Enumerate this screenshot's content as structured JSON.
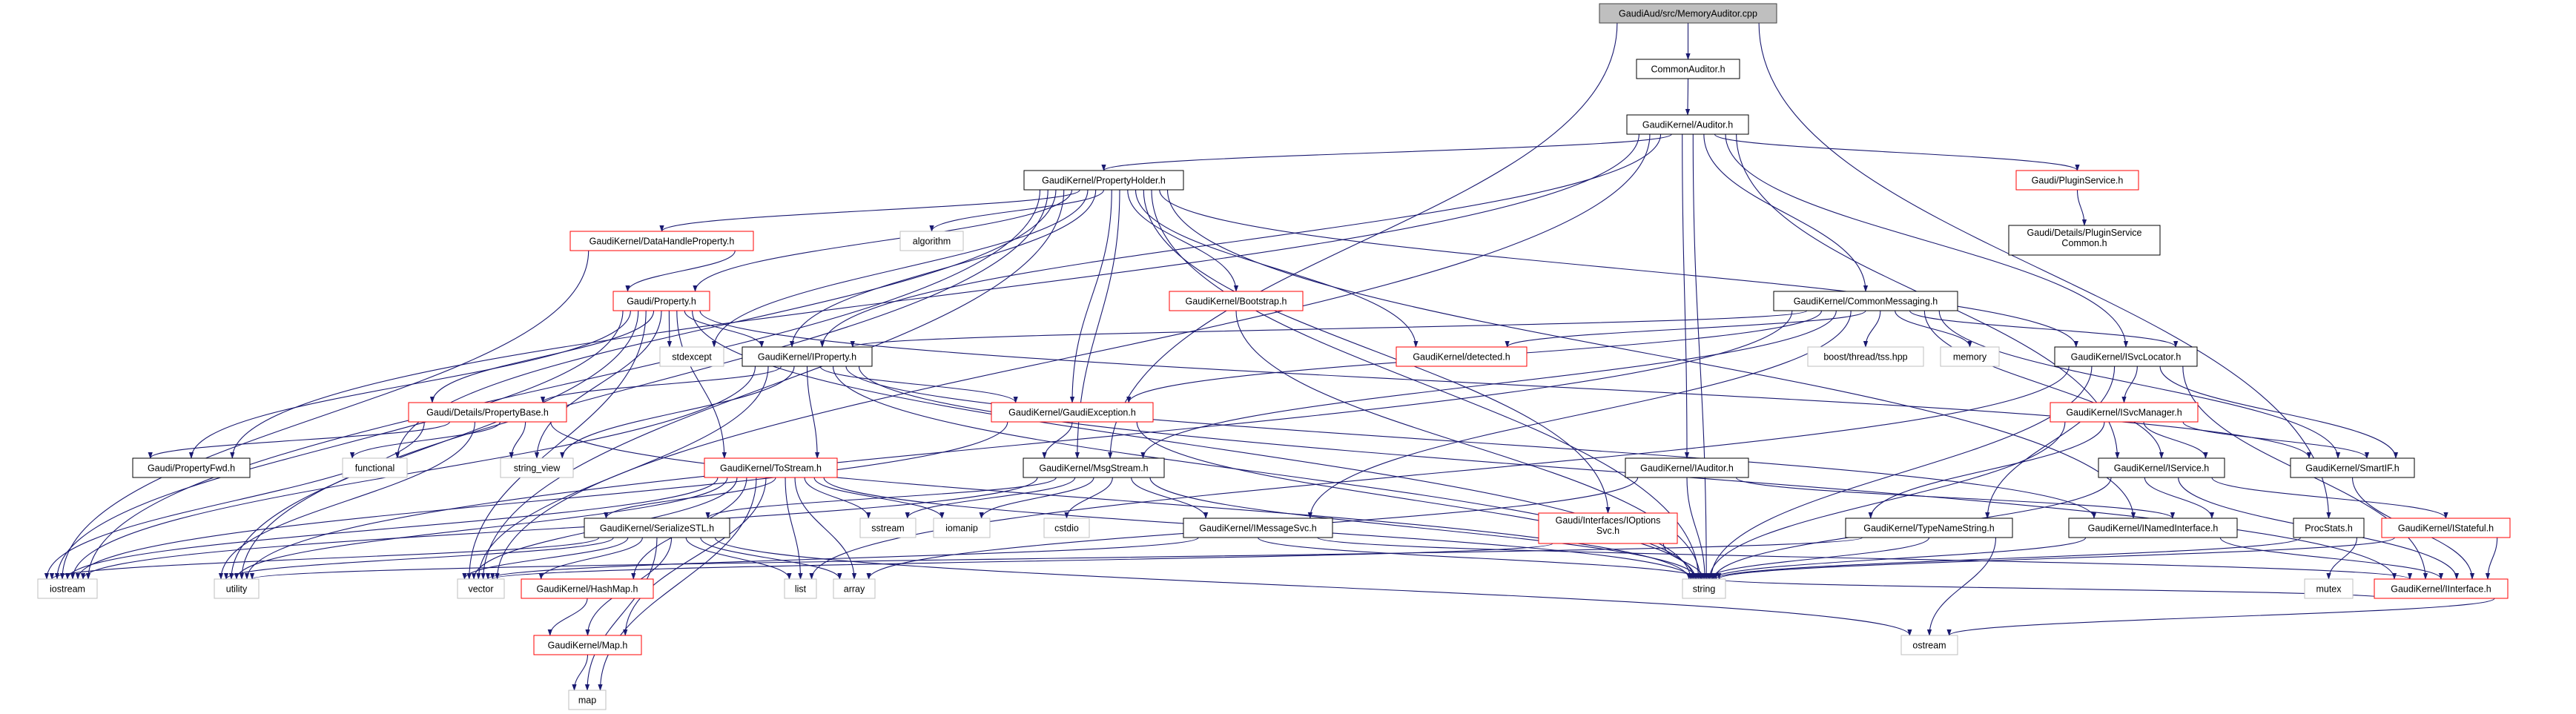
{
  "colors": {
    "edge": "#191970",
    "root_fill": "#bfbfbf",
    "root_border": "#404040",
    "documented_border": "#000000",
    "truncated_border": "#ff0000",
    "system_border": "#bfbfbf",
    "node_fill": "#ffffff"
  },
  "nodes": [
    {
      "id": "root",
      "label": [
        "GaudiAud/src/MemoryAuditor.cpp"
      ],
      "kind": "root"
    },
    {
      "id": "commonauditor",
      "label": [
        "CommonAuditor.h"
      ],
      "kind": "doc"
    },
    {
      "id": "auditor",
      "label": [
        "GaudiKernel/Auditor.h"
      ],
      "kind": "doc"
    },
    {
      "id": "propertyholder",
      "label": [
        "GaudiKernel/PropertyHolder.h"
      ],
      "kind": "doc"
    },
    {
      "id": "pluginservice",
      "label": [
        "Gaudi/PluginService.h"
      ],
      "kind": "red"
    },
    {
      "id": "pscommon",
      "label": [
        "Gaudi/Details/PluginService",
        "Common.h"
      ],
      "kind": "doc"
    },
    {
      "id": "datahandle",
      "label": [
        "GaudiKernel/DataHandleProperty.h"
      ],
      "kind": "red"
    },
    {
      "id": "algorithm",
      "label": [
        "algorithm"
      ],
      "kind": "sys"
    },
    {
      "id": "property",
      "label": [
        "Gaudi/Property.h"
      ],
      "kind": "red"
    },
    {
      "id": "bootstrap",
      "label": [
        "GaudiKernel/Bootstrap.h"
      ],
      "kind": "red"
    },
    {
      "id": "commonmessaging",
      "label": [
        "GaudiKernel/CommonMessaging.h"
      ],
      "kind": "doc"
    },
    {
      "id": "stdexcept",
      "label": [
        "stdexcept"
      ],
      "kind": "sys"
    },
    {
      "id": "iproperty",
      "label": [
        "GaudiKernel/IProperty.h"
      ],
      "kind": "doc"
    },
    {
      "id": "detected",
      "label": [
        "GaudiKernel/detected.h"
      ],
      "kind": "red"
    },
    {
      "id": "boosttss",
      "label": [
        "boost/thread/tss.hpp"
      ],
      "kind": "sys"
    },
    {
      "id": "memory",
      "label": [
        "memory"
      ],
      "kind": "sys"
    },
    {
      "id": "isvclocator",
      "label": [
        "GaudiKernel/ISvcLocator.h"
      ],
      "kind": "doc"
    },
    {
      "id": "propertybase",
      "label": [
        "Gaudi/Details/PropertyBase.h"
      ],
      "kind": "red"
    },
    {
      "id": "gaudiexception",
      "label": [
        "GaudiKernel/GaudiException.h"
      ],
      "kind": "red"
    },
    {
      "id": "isvcmanager",
      "label": [
        "GaudiKernel/ISvcManager.h"
      ],
      "kind": "red"
    },
    {
      "id": "propertyfwd",
      "label": [
        "Gaudi/PropertyFwd.h"
      ],
      "kind": "doc"
    },
    {
      "id": "functional",
      "label": [
        "functional"
      ],
      "kind": "sys"
    },
    {
      "id": "string_view",
      "label": [
        "string_view"
      ],
      "kind": "sys"
    },
    {
      "id": "tostream",
      "label": [
        "GaudiKernel/ToStream.h"
      ],
      "kind": "red"
    },
    {
      "id": "msgstream",
      "label": [
        "GaudiKernel/MsgStream.h"
      ],
      "kind": "doc"
    },
    {
      "id": "iauditor",
      "label": [
        "GaudiKernel/IAuditor.h"
      ],
      "kind": "doc"
    },
    {
      "id": "iservice",
      "label": [
        "GaudiKernel/IService.h"
      ],
      "kind": "doc"
    },
    {
      "id": "smartif",
      "label": [
        "GaudiKernel/SmartIF.h"
      ],
      "kind": "doc"
    },
    {
      "id": "serializestl",
      "label": [
        "GaudiKernel/SerializeSTL.h"
      ],
      "kind": "doc"
    },
    {
      "id": "sstream",
      "label": [
        "sstream"
      ],
      "kind": "sys"
    },
    {
      "id": "iomanip",
      "label": [
        "iomanip"
      ],
      "kind": "sys"
    },
    {
      "id": "cstdio",
      "label": [
        "cstdio"
      ],
      "kind": "sys"
    },
    {
      "id": "imessagesvc",
      "label": [
        "GaudiKernel/IMessageSvc.h"
      ],
      "kind": "doc"
    },
    {
      "id": "ioptionssvc",
      "label": [
        "Gaudi/Interfaces/IOptions",
        "Svc.h"
      ],
      "kind": "red"
    },
    {
      "id": "typenamestring",
      "label": [
        "GaudiKernel/TypeNameString.h"
      ],
      "kind": "doc"
    },
    {
      "id": "inamedinterface",
      "label": [
        "GaudiKernel/INamedInterface.h"
      ],
      "kind": "doc"
    },
    {
      "id": "procstats",
      "label": [
        "ProcStats.h"
      ],
      "kind": "doc"
    },
    {
      "id": "istateful",
      "label": [
        "GaudiKernel/IStateful.h"
      ],
      "kind": "red"
    },
    {
      "id": "iostream",
      "label": [
        "iostream"
      ],
      "kind": "sys"
    },
    {
      "id": "utility",
      "label": [
        "utility"
      ],
      "kind": "sys"
    },
    {
      "id": "vector",
      "label": [
        "vector"
      ],
      "kind": "sys"
    },
    {
      "id": "hashmap",
      "label": [
        "GaudiKernel/HashMap.h"
      ],
      "kind": "red"
    },
    {
      "id": "list",
      "label": [
        "list"
      ],
      "kind": "sys"
    },
    {
      "id": "array",
      "label": [
        "array"
      ],
      "kind": "sys"
    },
    {
      "id": "string",
      "label": [
        "string"
      ],
      "kind": "sys"
    },
    {
      "id": "mutex",
      "label": [
        "mutex"
      ],
      "kind": "sys"
    },
    {
      "id": "iinterface",
      "label": [
        "GaudiKernel/IInterface.h"
      ],
      "kind": "red"
    },
    {
      "id": "map_h",
      "label": [
        "GaudiKernel/Map.h"
      ],
      "kind": "red"
    },
    {
      "id": "ostream",
      "label": [
        "ostream"
      ],
      "kind": "sys"
    },
    {
      "id": "map",
      "label": [
        "map"
      ],
      "kind": "sys"
    }
  ],
  "edges": [
    [
      "root",
      "commonauditor"
    ],
    [
      "root",
      "msgstream"
    ],
    [
      "root",
      "procstats"
    ],
    [
      "commonauditor",
      "auditor"
    ],
    [
      "auditor",
      "propertyholder"
    ],
    [
      "auditor",
      "pluginservice"
    ],
    [
      "auditor",
      "iproperty"
    ],
    [
      "auditor",
      "commonmessaging"
    ],
    [
      "auditor",
      "iauditor"
    ],
    [
      "auditor",
      "isvclocator"
    ],
    [
      "auditor",
      "iservice"
    ],
    [
      "auditor",
      "string"
    ],
    [
      "auditor",
      "propertyfwd"
    ],
    [
      "auditor",
      "vector"
    ],
    [
      "pluginservice",
      "pscommon"
    ],
    [
      "propertyholder",
      "algorithm"
    ],
    [
      "propertyholder",
      "datahandle"
    ],
    [
      "propertyholder",
      "property"
    ],
    [
      "propertyholder",
      "iproperty"
    ],
    [
      "propertyholder",
      "bootstrap"
    ],
    [
      "propertyholder",
      "detected"
    ],
    [
      "propertyholder",
      "isvclocator"
    ],
    [
      "propertyholder",
      "ioptionssvc"
    ],
    [
      "propertyholder",
      "msgstream"
    ],
    [
      "propertyholder",
      "gaudiexception"
    ],
    [
      "propertyholder",
      "functional"
    ],
    [
      "propertyholder",
      "stdexcept"
    ],
    [
      "propertyholder",
      "string"
    ],
    [
      "propertyholder",
      "utility"
    ],
    [
      "propertyholder",
      "vector"
    ],
    [
      "propertyholder",
      "iostream"
    ],
    [
      "propertyholder",
      "inamedinterface"
    ],
    [
      "datahandle",
      "property"
    ],
    [
      "datahandle",
      "iostream"
    ],
    [
      "property",
      "propertybase"
    ],
    [
      "property",
      "iproperty"
    ],
    [
      "property",
      "tostream"
    ],
    [
      "property",
      "stdexcept"
    ],
    [
      "property",
      "string"
    ],
    [
      "property",
      "string_view"
    ],
    [
      "property",
      "utility"
    ],
    [
      "property",
      "propertyfwd"
    ],
    [
      "property",
      "smartif"
    ],
    [
      "property",
      "iostream"
    ],
    [
      "property",
      "vector"
    ],
    [
      "bootstrap",
      "string"
    ],
    [
      "commonmessaging",
      "detected"
    ],
    [
      "commonmessaging",
      "boosttss"
    ],
    [
      "commonmessaging",
      "memory"
    ],
    [
      "commonmessaging",
      "isvclocator"
    ],
    [
      "commonmessaging",
      "iservice"
    ],
    [
      "commonmessaging",
      "smartif"
    ],
    [
      "commonmessaging",
      "msgstream"
    ],
    [
      "commonmessaging",
      "imessagesvc"
    ],
    [
      "commonmessaging",
      "gaudiexception"
    ],
    [
      "commonmessaging",
      "iproperty"
    ],
    [
      "commonmessaging",
      "utility"
    ],
    [
      "iproperty",
      "gaudiexception"
    ],
    [
      "iproperty",
      "tostream"
    ],
    [
      "iproperty",
      "string_view"
    ],
    [
      "iproperty",
      "string"
    ],
    [
      "iproperty",
      "vector"
    ],
    [
      "iproperty",
      "iostream"
    ],
    [
      "iproperty",
      "inamedinterface"
    ],
    [
      "iproperty",
      "propertybase"
    ],
    [
      "iproperty",
      "iinterface"
    ],
    [
      "isvclocator",
      "isvcmanager"
    ],
    [
      "isvclocator",
      "typenamestring"
    ],
    [
      "isvclocator",
      "smartif"
    ],
    [
      "isvclocator",
      "iinterface"
    ],
    [
      "isvclocator",
      "string"
    ],
    [
      "isvclocator",
      "list"
    ],
    [
      "propertybase",
      "propertyfwd"
    ],
    [
      "propertybase",
      "functional"
    ],
    [
      "propertybase",
      "string_view"
    ],
    [
      "propertybase",
      "utility"
    ],
    [
      "propertybase",
      "iostream"
    ],
    [
      "propertybase",
      "string"
    ],
    [
      "gaudiexception",
      "msgstream"
    ],
    [
      "gaudiexception",
      "string"
    ],
    [
      "gaudiexception",
      "iostream"
    ],
    [
      "isvcmanager",
      "iservice"
    ],
    [
      "isvcmanager",
      "smartif"
    ],
    [
      "isvcmanager",
      "typenamestring"
    ],
    [
      "isvcmanager",
      "string"
    ],
    [
      "tostream",
      "serializestl"
    ],
    [
      "tostream",
      "hashmap"
    ],
    [
      "tostream",
      "map_h"
    ],
    [
      "tostream",
      "map"
    ],
    [
      "tostream",
      "vector"
    ],
    [
      "tostream",
      "list"
    ],
    [
      "tostream",
      "array"
    ],
    [
      "tostream",
      "sstream"
    ],
    [
      "tostream",
      "iomanip"
    ],
    [
      "tostream",
      "utility"
    ],
    [
      "tostream",
      "iostream"
    ],
    [
      "tostream",
      "string"
    ],
    [
      "msgstream",
      "serializestl"
    ],
    [
      "msgstream",
      "imessagesvc"
    ],
    [
      "msgstream",
      "sstream"
    ],
    [
      "msgstream",
      "iomanip"
    ],
    [
      "msgstream",
      "cstdio"
    ],
    [
      "msgstream",
      "string"
    ],
    [
      "msgstream",
      "iostream"
    ],
    [
      "iauditor",
      "inamedinterface"
    ],
    [
      "iauditor",
      "string"
    ],
    [
      "iauditor",
      "array"
    ],
    [
      "iservice",
      "inamedinterface"
    ],
    [
      "iservice",
      "istateful"
    ],
    [
      "iservice",
      "string"
    ],
    [
      "iservice",
      "iinterface"
    ],
    [
      "smartif",
      "iinterface"
    ],
    [
      "serializestl",
      "hashmap"
    ],
    [
      "serializestl",
      "map_h"
    ],
    [
      "serializestl",
      "map"
    ],
    [
      "serializestl",
      "vector"
    ],
    [
      "serializestl",
      "list"
    ],
    [
      "serializestl",
      "array"
    ],
    [
      "serializestl",
      "utility"
    ],
    [
      "serializestl",
      "iostream"
    ],
    [
      "serializestl",
      "ostream"
    ],
    [
      "imessagesvc",
      "iinterface"
    ],
    [
      "imessagesvc",
      "string"
    ],
    [
      "imessagesvc",
      "vector"
    ],
    [
      "ioptionssvc",
      "string"
    ],
    [
      "ioptionssvc",
      "vector"
    ],
    [
      "typenamestring",
      "ostream"
    ],
    [
      "typenamestring",
      "string"
    ],
    [
      "typenamestring",
      "utility"
    ],
    [
      "inamedinterface",
      "iinterface"
    ],
    [
      "inamedinterface",
      "string"
    ],
    [
      "procstats",
      "mutex"
    ],
    [
      "procstats",
      "string"
    ],
    [
      "istateful",
      "iinterface"
    ],
    [
      "istateful",
      "string"
    ],
    [
      "hashmap",
      "map_h"
    ],
    [
      "map_h",
      "map"
    ],
    [
      "iinterface",
      "ostream"
    ],
    [
      "iinterface",
      "string"
    ]
  ]
}
